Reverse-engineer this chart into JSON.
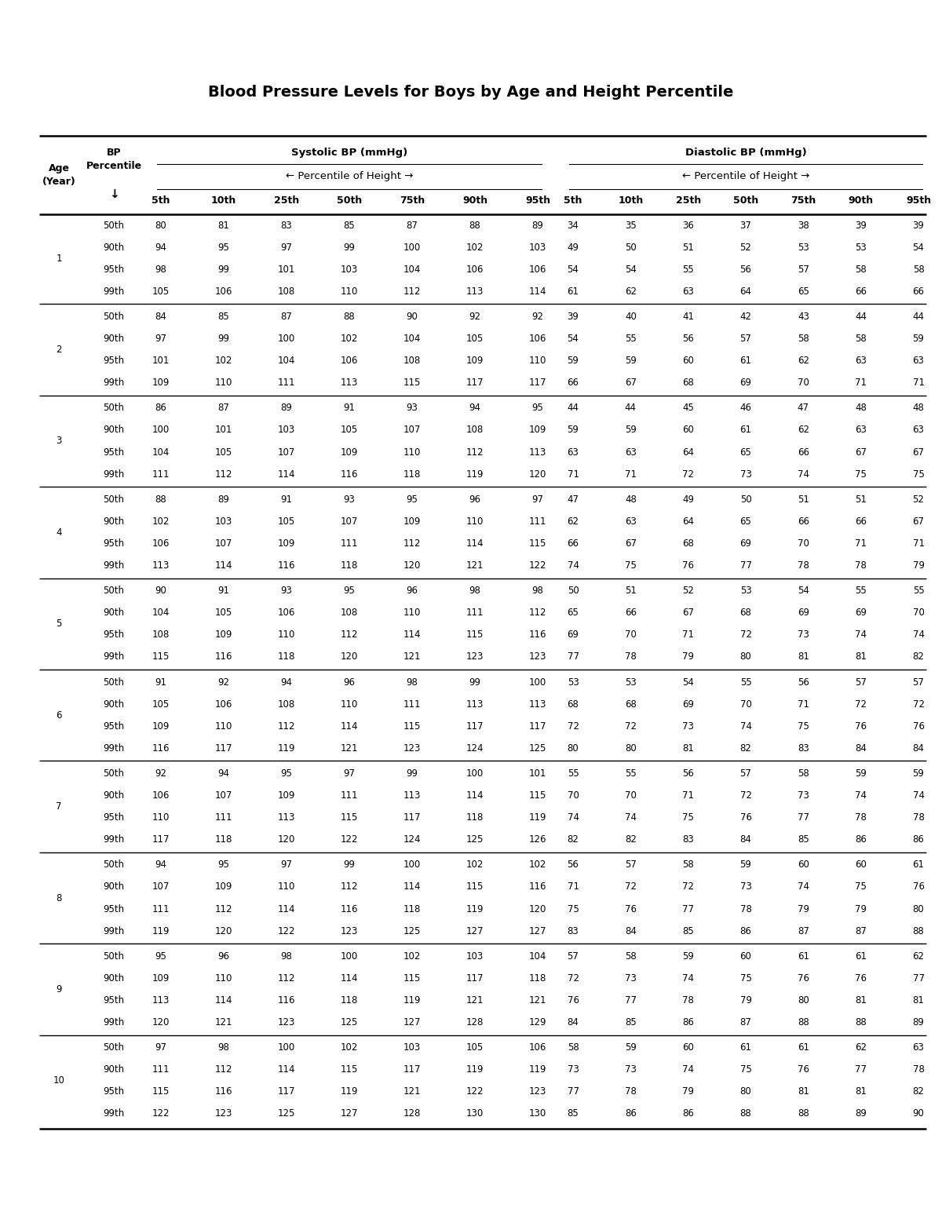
{
  "title": "Blood Pressure Levels for Boys by Age and Height Percentile",
  "systolic_header": "Systolic BP (mmHg)",
  "diastolic_header": "Diastolic BP (mmHg)",
  "height_percentile_label": "← Percentile of Height →",
  "col_headers": [
    "5th",
    "10th",
    "25th",
    "50th",
    "75th",
    "90th",
    "95th"
  ],
  "data": [
    {
      "age": 1,
      "rows": [
        {
          "bp_pct": "50th",
          "sys": [
            80,
            81,
            83,
            85,
            87,
            88,
            89
          ],
          "dia": [
            34,
            35,
            36,
            37,
            38,
            39,
            39
          ]
        },
        {
          "bp_pct": "90th",
          "sys": [
            94,
            95,
            97,
            99,
            100,
            102,
            103
          ],
          "dia": [
            49,
            50,
            51,
            52,
            53,
            53,
            54
          ]
        },
        {
          "bp_pct": "95th",
          "sys": [
            98,
            99,
            101,
            103,
            104,
            106,
            106
          ],
          "dia": [
            54,
            54,
            55,
            56,
            57,
            58,
            58
          ]
        },
        {
          "bp_pct": "99th",
          "sys": [
            105,
            106,
            108,
            110,
            112,
            113,
            114
          ],
          "dia": [
            61,
            62,
            63,
            64,
            65,
            66,
            66
          ]
        }
      ]
    },
    {
      "age": 2,
      "rows": [
        {
          "bp_pct": "50th",
          "sys": [
            84,
            85,
            87,
            88,
            90,
            92,
            92
          ],
          "dia": [
            39,
            40,
            41,
            42,
            43,
            44,
            44
          ]
        },
        {
          "bp_pct": "90th",
          "sys": [
            97,
            99,
            100,
            102,
            104,
            105,
            106
          ],
          "dia": [
            54,
            55,
            56,
            57,
            58,
            58,
            59
          ]
        },
        {
          "bp_pct": "95th",
          "sys": [
            101,
            102,
            104,
            106,
            108,
            109,
            110
          ],
          "dia": [
            59,
            59,
            60,
            61,
            62,
            63,
            63
          ]
        },
        {
          "bp_pct": "99th",
          "sys": [
            109,
            110,
            111,
            113,
            115,
            117,
            117
          ],
          "dia": [
            66,
            67,
            68,
            69,
            70,
            71,
            71
          ]
        }
      ]
    },
    {
      "age": 3,
      "rows": [
        {
          "bp_pct": "50th",
          "sys": [
            86,
            87,
            89,
            91,
            93,
            94,
            95
          ],
          "dia": [
            44,
            44,
            45,
            46,
            47,
            48,
            48
          ]
        },
        {
          "bp_pct": "90th",
          "sys": [
            100,
            101,
            103,
            105,
            107,
            108,
            109
          ],
          "dia": [
            59,
            59,
            60,
            61,
            62,
            63,
            63
          ]
        },
        {
          "bp_pct": "95th",
          "sys": [
            104,
            105,
            107,
            109,
            110,
            112,
            113
          ],
          "dia": [
            63,
            63,
            64,
            65,
            66,
            67,
            67
          ]
        },
        {
          "bp_pct": "99th",
          "sys": [
            111,
            112,
            114,
            116,
            118,
            119,
            120
          ],
          "dia": [
            71,
            71,
            72,
            73,
            74,
            75,
            75
          ]
        }
      ]
    },
    {
      "age": 4,
      "rows": [
        {
          "bp_pct": "50th",
          "sys": [
            88,
            89,
            91,
            93,
            95,
            96,
            97
          ],
          "dia": [
            47,
            48,
            49,
            50,
            51,
            51,
            52
          ]
        },
        {
          "bp_pct": "90th",
          "sys": [
            102,
            103,
            105,
            107,
            109,
            110,
            111
          ],
          "dia": [
            62,
            63,
            64,
            65,
            66,
            66,
            67
          ]
        },
        {
          "bp_pct": "95th",
          "sys": [
            106,
            107,
            109,
            111,
            112,
            114,
            115
          ],
          "dia": [
            66,
            67,
            68,
            69,
            70,
            71,
            71
          ]
        },
        {
          "bp_pct": "99th",
          "sys": [
            113,
            114,
            116,
            118,
            120,
            121,
            122
          ],
          "dia": [
            74,
            75,
            76,
            77,
            78,
            78,
            79
          ]
        }
      ]
    },
    {
      "age": 5,
      "rows": [
        {
          "bp_pct": "50th",
          "sys": [
            90,
            91,
            93,
            95,
            96,
            98,
            98
          ],
          "dia": [
            50,
            51,
            52,
            53,
            54,
            55,
            55
          ]
        },
        {
          "bp_pct": "90th",
          "sys": [
            104,
            105,
            106,
            108,
            110,
            111,
            112
          ],
          "dia": [
            65,
            66,
            67,
            68,
            69,
            69,
            70
          ]
        },
        {
          "bp_pct": "95th",
          "sys": [
            108,
            109,
            110,
            112,
            114,
            115,
            116
          ],
          "dia": [
            69,
            70,
            71,
            72,
            73,
            74,
            74
          ]
        },
        {
          "bp_pct": "99th",
          "sys": [
            115,
            116,
            118,
            120,
            121,
            123,
            123
          ],
          "dia": [
            77,
            78,
            79,
            80,
            81,
            81,
            82
          ]
        }
      ]
    },
    {
      "age": 6,
      "rows": [
        {
          "bp_pct": "50th",
          "sys": [
            91,
            92,
            94,
            96,
            98,
            99,
            100
          ],
          "dia": [
            53,
            53,
            54,
            55,
            56,
            57,
            57
          ]
        },
        {
          "bp_pct": "90th",
          "sys": [
            105,
            106,
            108,
            110,
            111,
            113,
            113
          ],
          "dia": [
            68,
            68,
            69,
            70,
            71,
            72,
            72
          ]
        },
        {
          "bp_pct": "95th",
          "sys": [
            109,
            110,
            112,
            114,
            115,
            117,
            117
          ],
          "dia": [
            72,
            72,
            73,
            74,
            75,
            76,
            76
          ]
        },
        {
          "bp_pct": "99th",
          "sys": [
            116,
            117,
            119,
            121,
            123,
            124,
            125
          ],
          "dia": [
            80,
            80,
            81,
            82,
            83,
            84,
            84
          ]
        }
      ]
    },
    {
      "age": 7,
      "rows": [
        {
          "bp_pct": "50th",
          "sys": [
            92,
            94,
            95,
            97,
            99,
            100,
            101
          ],
          "dia": [
            55,
            55,
            56,
            57,
            58,
            59,
            59
          ]
        },
        {
          "bp_pct": "90th",
          "sys": [
            106,
            107,
            109,
            111,
            113,
            114,
            115
          ],
          "dia": [
            70,
            70,
            71,
            72,
            73,
            74,
            74
          ]
        },
        {
          "bp_pct": "95th",
          "sys": [
            110,
            111,
            113,
            115,
            117,
            118,
            119
          ],
          "dia": [
            74,
            74,
            75,
            76,
            77,
            78,
            78
          ]
        },
        {
          "bp_pct": "99th",
          "sys": [
            117,
            118,
            120,
            122,
            124,
            125,
            126
          ],
          "dia": [
            82,
            82,
            83,
            84,
            85,
            86,
            86
          ]
        }
      ]
    },
    {
      "age": 8,
      "rows": [
        {
          "bp_pct": "50th",
          "sys": [
            94,
            95,
            97,
            99,
            100,
            102,
            102
          ],
          "dia": [
            56,
            57,
            58,
            59,
            60,
            60,
            61
          ]
        },
        {
          "bp_pct": "90th",
          "sys": [
            107,
            109,
            110,
            112,
            114,
            115,
            116
          ],
          "dia": [
            71,
            72,
            72,
            73,
            74,
            75,
            76
          ]
        },
        {
          "bp_pct": "95th",
          "sys": [
            111,
            112,
            114,
            116,
            118,
            119,
            120
          ],
          "dia": [
            75,
            76,
            77,
            78,
            79,
            79,
            80
          ]
        },
        {
          "bp_pct": "99th",
          "sys": [
            119,
            120,
            122,
            123,
            125,
            127,
            127
          ],
          "dia": [
            83,
            84,
            85,
            86,
            87,
            87,
            88
          ]
        }
      ]
    },
    {
      "age": 9,
      "rows": [
        {
          "bp_pct": "50th",
          "sys": [
            95,
            96,
            98,
            100,
            102,
            103,
            104
          ],
          "dia": [
            57,
            58,
            59,
            60,
            61,
            61,
            62
          ]
        },
        {
          "bp_pct": "90th",
          "sys": [
            109,
            110,
            112,
            114,
            115,
            117,
            118
          ],
          "dia": [
            72,
            73,
            74,
            75,
            76,
            76,
            77
          ]
        },
        {
          "bp_pct": "95th",
          "sys": [
            113,
            114,
            116,
            118,
            119,
            121,
            121
          ],
          "dia": [
            76,
            77,
            78,
            79,
            80,
            81,
            81
          ]
        },
        {
          "bp_pct": "99th",
          "sys": [
            120,
            121,
            123,
            125,
            127,
            128,
            129
          ],
          "dia": [
            84,
            85,
            86,
            87,
            88,
            88,
            89
          ]
        }
      ]
    },
    {
      "age": 10,
      "rows": [
        {
          "bp_pct": "50th",
          "sys": [
            97,
            98,
            100,
            102,
            103,
            105,
            106
          ],
          "dia": [
            58,
            59,
            60,
            61,
            61,
            62,
            63
          ]
        },
        {
          "bp_pct": "90th",
          "sys": [
            111,
            112,
            114,
            115,
            117,
            119,
            119
          ],
          "dia": [
            73,
            73,
            74,
            75,
            76,
            77,
            78
          ]
        },
        {
          "bp_pct": "95th",
          "sys": [
            115,
            116,
            117,
            119,
            121,
            122,
            123
          ],
          "dia": [
            77,
            78,
            79,
            80,
            81,
            81,
            82
          ]
        },
        {
          "bp_pct": "99th",
          "sys": [
            122,
            123,
            125,
            127,
            128,
            130,
            130
          ],
          "dia": [
            85,
            86,
            86,
            88,
            88,
            89,
            90
          ]
        }
      ]
    }
  ],
  "bg_color": "#ffffff",
  "text_color": "#000000",
  "fig_width": 12.0,
  "fig_height": 15.53,
  "dpi": 100
}
